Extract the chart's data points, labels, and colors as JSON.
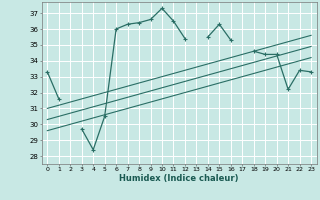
{
  "background_color": "#c8e8e4",
  "grid_color": "#b0d8d4",
  "line_color": "#2a6e65",
  "xlabel": "Humidex (Indice chaleur)",
  "ylim": [
    27.5,
    37.7
  ],
  "xlim": [
    -0.5,
    23.5
  ],
  "yticks": [
    28,
    29,
    30,
    31,
    32,
    33,
    34,
    35,
    36,
    37
  ],
  "xticks": [
    0,
    1,
    2,
    3,
    4,
    5,
    6,
    7,
    8,
    9,
    10,
    11,
    12,
    13,
    14,
    15,
    16,
    17,
    18,
    19,
    20,
    21,
    22,
    23
  ],
  "curve1_x": [
    0,
    1,
    2,
    3,
    4,
    5,
    6,
    7,
    8,
    9,
    10,
    11,
    12,
    13,
    14,
    15,
    16,
    17,
    18,
    19,
    20,
    21,
    22,
    23
  ],
  "curve1_y": [
    33.3,
    31.6,
    null,
    29.7,
    28.4,
    30.5,
    36.0,
    36.3,
    36.4,
    36.6,
    37.3,
    36.5,
    35.4,
    null,
    35.5,
    36.3,
    35.3,
    null,
    34.6,
    34.4,
    34.4,
    32.2,
    33.4,
    33.3
  ],
  "line2_x": [
    0,
    23
  ],
  "line2_y": [
    29.6,
    34.2
  ],
  "line3_x": [
    0,
    23
  ],
  "line3_y": [
    30.3,
    34.9
  ],
  "line4_x": [
    0,
    23
  ],
  "line4_y": [
    31.0,
    35.6
  ]
}
